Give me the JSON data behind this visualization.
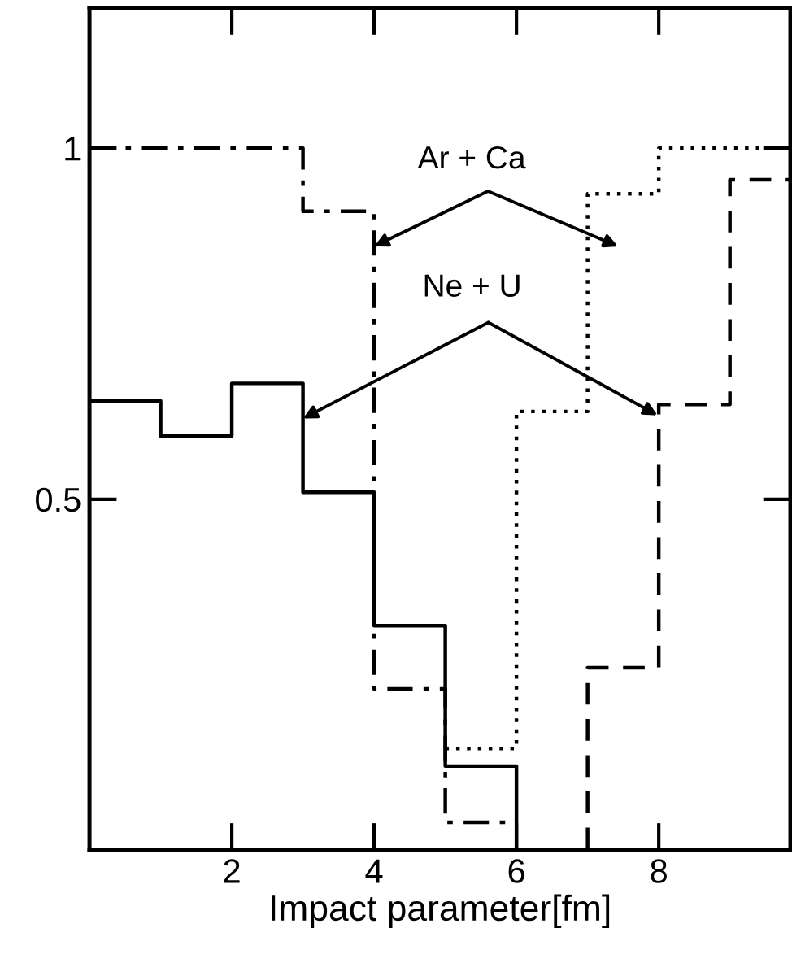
{
  "chart_data": {
    "type": "step",
    "xlabel": "Impact parameter[fm]",
    "xlim": [
      0,
      9.85
    ],
    "ylim": [
      0,
      1.2
    ],
    "xticks": [
      2,
      4,
      6,
      8
    ],
    "yticks": [
      0.5,
      1
    ],
    "grid": false,
    "series": [
      {
        "color": "#000000",
        "line_style": "solid",
        "x": [
          0,
          1,
          2,
          3,
          4,
          5,
          6,
          6.8
        ],
        "values": [
          0.64,
          0.59,
          0.665,
          0.51,
          0.32,
          0.12,
          0,
          0
        ]
      },
      {
        "color": "#000000",
        "line_style": "dashdot",
        "x": [
          0,
          3,
          4,
          5,
          6
        ],
        "values": [
          1.0,
          0.91,
          0.23,
          0.04,
          0.04
        ]
      },
      {
        "color": "#000000",
        "line_style": "dotted",
        "x": [
          5,
          6,
          7,
          8,
          9.85
        ],
        "values": [
          0.145,
          0.625,
          0.935,
          1.0,
          1.0
        ]
      },
      {
        "color": "#000000",
        "line_style": "dashed",
        "x": [
          6,
          7,
          8,
          9,
          9.85
        ],
        "values": [
          0,
          0.26,
          0.635,
          0.955,
          0.955
        ]
      }
    ],
    "annotations": [
      {
        "text": "Ar + Ca",
        "x": 4,
        "y": 0.86
      },
      {
        "text": "Ne + U",
        "x": 3,
        "y": 0.615
      }
    ]
  }
}
